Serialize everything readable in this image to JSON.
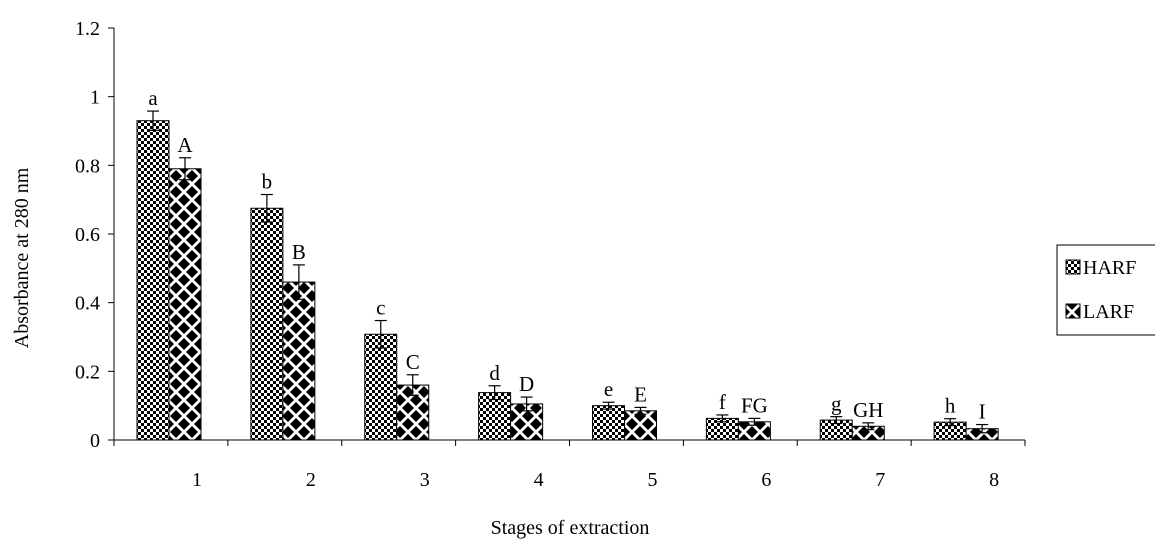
{
  "chart_data": {
    "type": "bar",
    "title": "",
    "xlabel": "Stages of extraction",
    "ylabel": "Absorbance at 280 nm",
    "ylim": [
      0,
      1.2
    ],
    "yticks": [
      "0",
      "0.2",
      "0.4",
      "0.6",
      "0.8",
      "1",
      "1.2"
    ],
    "categories": [
      "1",
      "2",
      "3",
      "4",
      "5",
      "6",
      "7",
      "8"
    ],
    "series": [
      {
        "name": "HARF",
        "values": [
          0.93,
          0.675,
          0.308,
          0.138,
          0.1,
          0.063,
          0.058,
          0.052
        ],
        "errors": [
          0.028,
          0.04,
          0.04,
          0.02,
          0.01,
          0.01,
          0.01,
          0.01
        ],
        "labels": [
          "a",
          "b",
          "c",
          "d",
          "e",
          "f",
          "g",
          "h"
        ],
        "pattern": "checker"
      },
      {
        "name": "LARF",
        "values": [
          0.79,
          0.46,
          0.16,
          0.105,
          0.085,
          0.053,
          0.04,
          0.033
        ],
        "errors": [
          0.032,
          0.05,
          0.03,
          0.02,
          0.01,
          0.01,
          0.01,
          0.012
        ],
        "labels": [
          "A",
          "B",
          "C",
          "D",
          "E",
          "FG",
          "GH",
          "I"
        ],
        "pattern": "diamond"
      }
    ],
    "legend": "right",
    "grid": false
  }
}
